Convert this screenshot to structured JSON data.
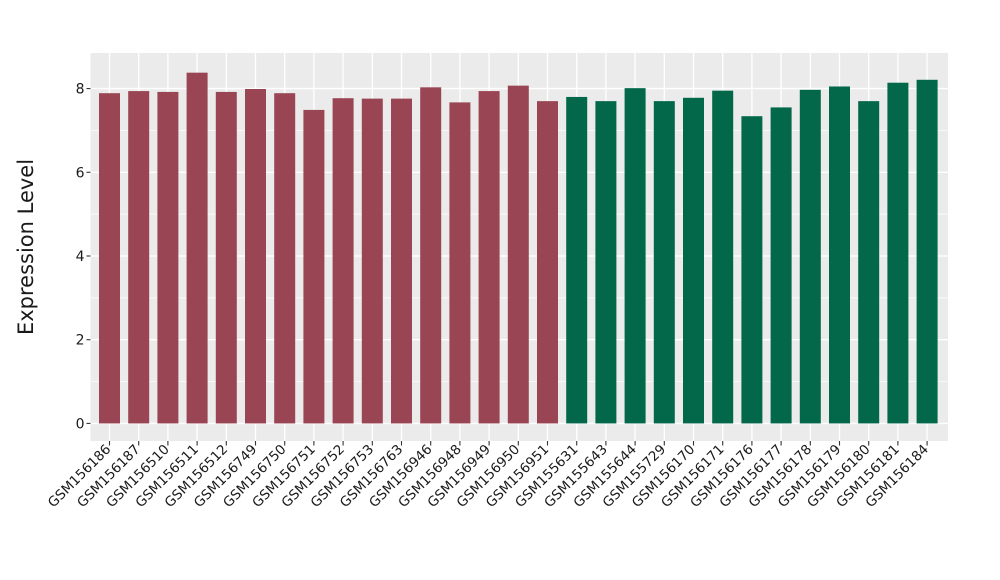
{
  "chart_data": {
    "type": "bar",
    "title": "",
    "xlabel": "",
    "ylabel": "Expression Level",
    "categories": [
      "GSM156186",
      "GSM156187",
      "GSM156510",
      "GSM156511",
      "GSM156512",
      "GSM156749",
      "GSM156750",
      "GSM156751",
      "GSM156752",
      "GSM156753",
      "GSM156763",
      "GSM156946",
      "GSM156948",
      "GSM156949",
      "GSM156950",
      "GSM156951",
      "GSM155631",
      "GSM155643",
      "GSM155644",
      "GSM155729",
      "GSM156170",
      "GSM156171",
      "GSM156176",
      "GSM156177",
      "GSM156178",
      "GSM156179",
      "GSM156180",
      "GSM156181",
      "GSM156184"
    ],
    "values": [
      7.89,
      7.94,
      7.92,
      8.38,
      7.92,
      7.99,
      7.89,
      7.49,
      7.77,
      7.76,
      7.76,
      8.03,
      7.67,
      7.94,
      8.07,
      7.7,
      7.8,
      7.7,
      8.01,
      7.7,
      7.78,
      7.95,
      7.34,
      7.55,
      7.97,
      8.05,
      7.7,
      8.14,
      8.21
    ],
    "group_of_bar": [
      "maroon",
      "maroon",
      "maroon",
      "maroon",
      "maroon",
      "maroon",
      "maroon",
      "maroon",
      "maroon",
      "maroon",
      "maroon",
      "maroon",
      "maroon",
      "maroon",
      "maroon",
      "maroon",
      "green",
      "green",
      "green",
      "green",
      "green",
      "green",
      "green",
      "green",
      "green",
      "green",
      "green",
      "green",
      "green"
    ],
    "group_colors": {
      "maroon": "#9a4553",
      "green": "#03684a"
    },
    "yticks": [
      0,
      2,
      4,
      6,
      8
    ],
    "minor_yticks": [
      1,
      3,
      5,
      7
    ],
    "ylim": [
      -0.42,
      8.85
    ],
    "grid": true,
    "legend_position": "none",
    "x_label_rotation": 45,
    "panel_background": "#ebebeb",
    "grid_color": "#ffffff",
    "text_color": "#1a1a1a",
    "tick_color": "#333333"
  }
}
